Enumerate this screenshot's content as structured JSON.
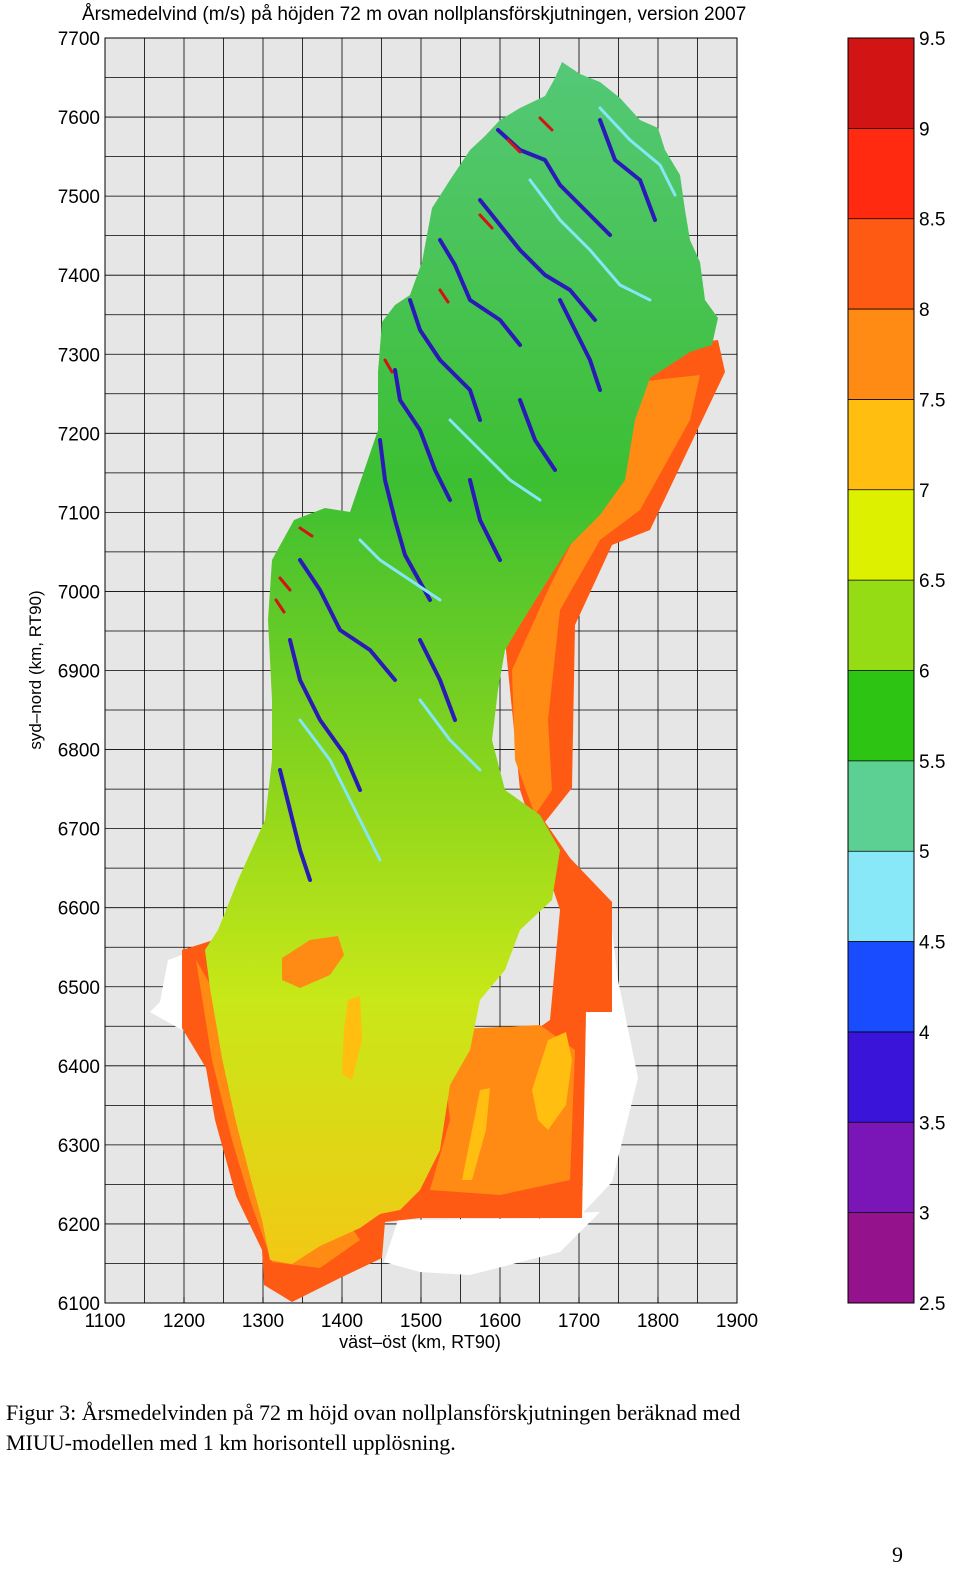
{
  "map": {
    "title": "Årsmedelvind (m/s) på höjden 72 m ovan nollplansförskjutningen, version 2007",
    "xlabel": "väst–öst (km, RT90)",
    "ylabel": "syd–nord (km, RT90)",
    "x_ticks": [
      "1100",
      "1200",
      "1300",
      "1400",
      "1500",
      "1600",
      "1700",
      "1800",
      "1900"
    ],
    "y_ticks": [
      "6100",
      "6200",
      "6300",
      "6400",
      "6500",
      "6600",
      "6700",
      "6800",
      "6900",
      "7000",
      "7100",
      "7200",
      "7300",
      "7400",
      "7500",
      "7600",
      "7700"
    ],
    "xlim": [
      1100,
      1900
    ],
    "ylim": [
      6100,
      7700
    ],
    "grid": true,
    "grid_step_km": 50,
    "background_color": "#e6e6e6"
  },
  "colorbar": {
    "ticks": [
      "9.5",
      "9",
      "8.5",
      "8",
      "7.5",
      "7",
      "6.5",
      "6",
      "5.5",
      "5",
      "4.5",
      "4",
      "3.5",
      "3",
      "2.5"
    ],
    "colors": [
      "#d21414",
      "#ff2a10",
      "#ff5a14",
      "#ff8a14",
      "#ffbe10",
      "#ddf000",
      "#96dc14",
      "#2ec414",
      "#5ccf92",
      "#88e8f8",
      "#1a4cff",
      "#3a14d8",
      "#7a16b8",
      "#94128c"
    ]
  },
  "caption": {
    "line1": "Figur 3: Årsmedelvinden på 72 m höjd ovan nollplansförskjutningen beräknad med",
    "line2": "MIUU-modellen med 1 km horisontell upplösning."
  },
  "page_number": "9"
}
